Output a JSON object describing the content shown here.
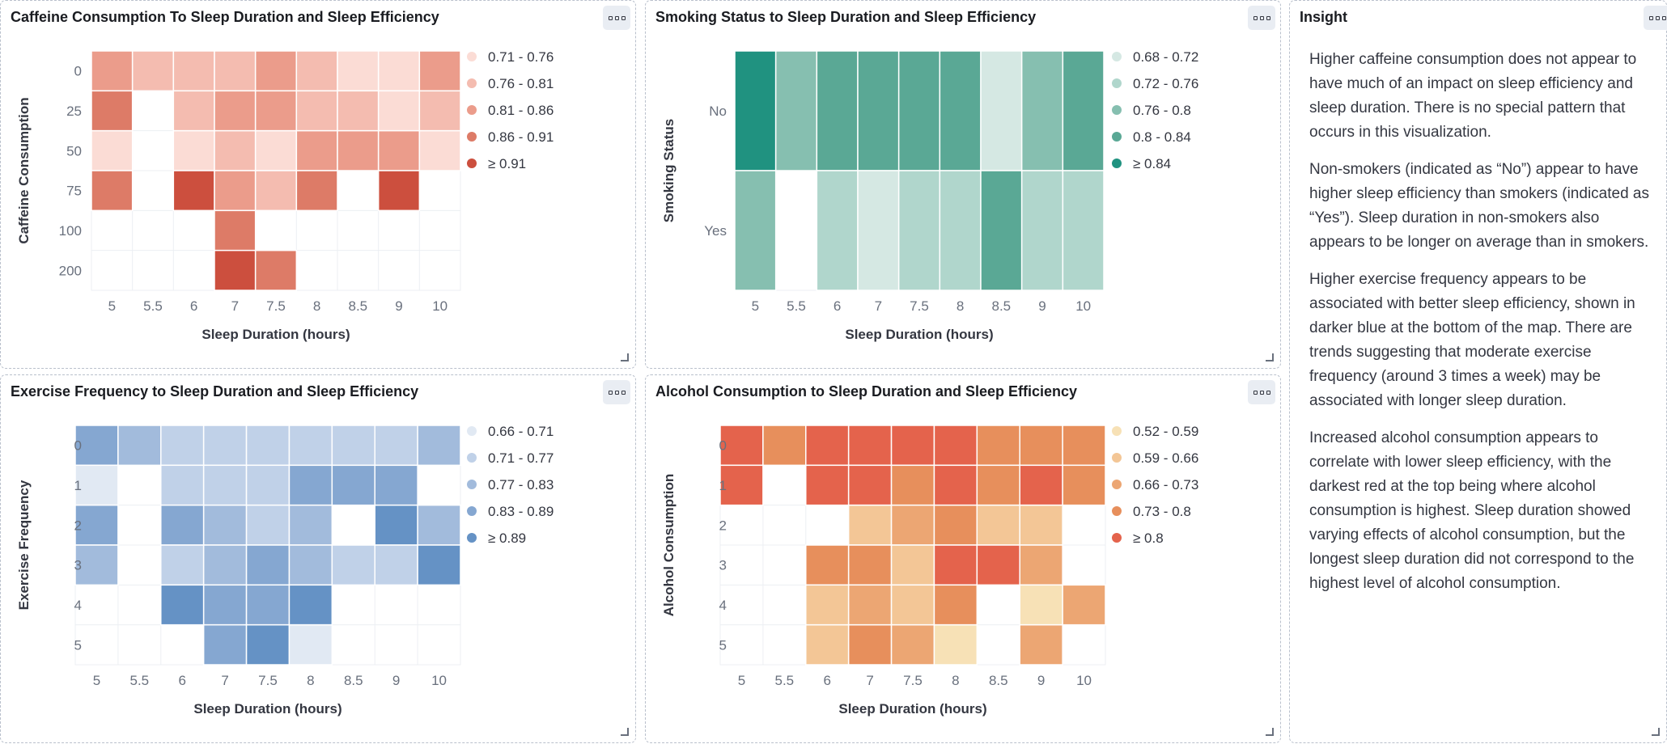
{
  "panels": [
    {
      "id": "caffeine",
      "title": "Caffeine Consumption To Sleep Duration and Sleep Efficiency"
    },
    {
      "id": "smoking",
      "title": "Smoking Status to Sleep Duration and Sleep Efficiency"
    },
    {
      "id": "exercise",
      "title": "Exercise Frequency to Sleep Duration and Sleep Efficiency"
    },
    {
      "id": "alcohol",
      "title": "Alcohol Consumption to Sleep Duration and Sleep Efficiency"
    }
  ],
  "insight": {
    "title": "Insight",
    "paragraphs": [
      "Higher caffeine consumption does not appear to have much of an impact on sleep efficiency and sleep duration. There is no special pattern that occurs in this visualization.",
      "Non-smokers (indicated as “No”) appear to have higher sleep efficiency than smokers (indicated as “Yes”). Sleep duration in non-smokers also appears to be longer on average than in smokers.",
      "Higher exercise frequency appears to be associated with better sleep efficiency, shown in darker blue at the bottom of the map. There are trends suggesting that moderate exercise frequency (around 3 times a week) may be associated with longer sleep duration.",
      "Increased alcohol consumption appears to correlate with lower sleep efficiency, with the darkest red at the top being where alcohol consumption is highest. Sleep duration showed varying effects of alcohol consumption, but the longest sleep duration did not correspond to the highest level of alcohol consumption."
    ]
  },
  "chart_data": [
    {
      "type": "heatmap",
      "title": "Caffeine Consumption To Sleep Duration and Sleep Efficiency",
      "xlabel": "Sleep Duration (hours)",
      "ylabel": "Caffeine Consumption",
      "x": [
        "5",
        "5.5",
        "6",
        "7",
        "7.5",
        "8",
        "8.5",
        "9",
        "10"
      ],
      "y": [
        "0",
        "25",
        "50",
        "75",
        "100",
        "200"
      ],
      "legend": [
        {
          "label": "0.71 - 0.76",
          "color": "#fbdcd5"
        },
        {
          "label": "0.76 - 0.81",
          "color": "#f4bcb0"
        },
        {
          "label": "0.81 - 0.86",
          "color": "#eb9c8b"
        },
        {
          "label": "0.86 - 0.91",
          "color": "#dd7b67"
        },
        {
          "label": "≥ 0.91",
          "color": "#cc4f3e"
        }
      ],
      "values": [
        [
          3,
          2,
          2,
          2,
          3,
          2,
          1,
          1,
          3
        ],
        [
          4,
          null,
          2,
          3,
          3,
          2,
          2,
          1,
          2
        ],
        [
          1,
          null,
          1,
          2,
          1,
          3,
          3,
          3,
          1
        ],
        [
          4,
          null,
          5,
          3,
          2,
          4,
          null,
          5,
          null
        ],
        [
          null,
          null,
          null,
          4,
          null,
          null,
          null,
          null,
          null
        ],
        [
          null,
          null,
          null,
          5,
          4,
          null,
          null,
          null,
          null
        ]
      ]
    },
    {
      "type": "heatmap",
      "title": "Smoking Status to Sleep Duration and Sleep Efficiency",
      "xlabel": "Sleep Duration (hours)",
      "ylabel": "Smoking Status",
      "x": [
        "5",
        "5.5",
        "6",
        "7",
        "7.5",
        "8",
        "8.5",
        "9",
        "10"
      ],
      "y": [
        "No",
        "Yes"
      ],
      "legend": [
        {
          "label": "0.68 - 0.72",
          "color": "#d5e8e3"
        },
        {
          "label": "0.72 - 0.76",
          "color": "#b0d6cc"
        },
        {
          "label": "0.76 - 0.8",
          "color": "#86bfb0"
        },
        {
          "label": "0.8 - 0.84",
          "color": "#5aa895"
        },
        {
          "label": "≥ 0.84",
          "color": "#209280"
        }
      ],
      "values": [
        [
          5,
          3,
          4,
          4,
          4,
          4,
          1,
          3,
          4
        ],
        [
          3,
          null,
          2,
          1,
          2,
          2,
          4,
          2,
          2
        ]
      ]
    },
    {
      "type": "heatmap",
      "title": "Exercise Frequency to Sleep Duration and Sleep Efficiency",
      "xlabel": "Sleep Duration (hours)",
      "ylabel": "Exercise Frequency",
      "x": [
        "5",
        "5.5",
        "6",
        "7",
        "7.5",
        "8",
        "8.5",
        "9",
        "10"
      ],
      "y": [
        "0",
        "1",
        "2",
        "3",
        "4",
        "5"
      ],
      "legend": [
        {
          "label": "0.66 - 0.71",
          "color": "#e1e9f3"
        },
        {
          "label": "0.71 - 0.77",
          "color": "#c0d1e8"
        },
        {
          "label": "0.77 - 0.83",
          "color": "#a2bbdc"
        },
        {
          "label": "0.83 - 0.89",
          "color": "#85a7d1"
        },
        {
          "label": "≥ 0.89",
          "color": "#6592c5"
        }
      ],
      "values": [
        [
          4,
          3,
          2,
          2,
          2,
          2,
          2,
          2,
          3
        ],
        [
          1,
          null,
          2,
          2,
          2,
          4,
          4,
          4,
          null
        ],
        [
          4,
          null,
          4,
          3,
          2,
          3,
          null,
          5,
          3
        ],
        [
          3,
          null,
          2,
          3,
          4,
          3,
          2,
          2,
          5
        ],
        [
          null,
          null,
          5,
          4,
          4,
          5,
          null,
          null,
          null
        ],
        [
          null,
          null,
          null,
          4,
          5,
          1,
          null,
          null,
          null
        ]
      ]
    },
    {
      "type": "heatmap",
      "title": "Alcohol Consumption to Sleep Duration and Sleep Efficiency",
      "xlabel": "Sleep Duration (hours)",
      "ylabel": "Alcohol Consumption",
      "x": [
        "5",
        "5.5",
        "6",
        "7",
        "7.5",
        "8",
        "8.5",
        "9",
        "10"
      ],
      "y": [
        "0",
        "1",
        "2",
        "3",
        "4",
        "5"
      ],
      "legend": [
        {
          "label": "0.52 - 0.59",
          "color": "#f7e1b6"
        },
        {
          "label": "0.59 - 0.66",
          "color": "#f3c696"
        },
        {
          "label": "0.66 - 0.73",
          "color": "#eca673"
        },
        {
          "label": "0.73 - 0.8",
          "color": "#e78f5c"
        },
        {
          "label": "≥ 0.8",
          "color": "#e4634c"
        }
      ],
      "values": [
        [
          5,
          4,
          5,
          5,
          5,
          5,
          4,
          4,
          4
        ],
        [
          5,
          null,
          5,
          5,
          4,
          5,
          4,
          5,
          4
        ],
        [
          null,
          null,
          null,
          2,
          3,
          4,
          2,
          2,
          null
        ],
        [
          null,
          null,
          4,
          4,
          2,
          5,
          5,
          3,
          null
        ],
        [
          null,
          null,
          2,
          3,
          2,
          4,
          null,
          1,
          3
        ],
        [
          null,
          null,
          2,
          4,
          3,
          1,
          null,
          3,
          null
        ]
      ]
    }
  ]
}
